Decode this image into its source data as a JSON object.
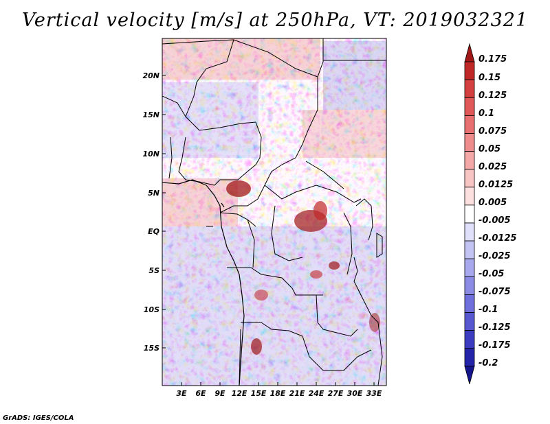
{
  "title": "Vertical velocity [m/s] at 250hPa, VT: 2019032321",
  "map": {
    "region": "Central Africa",
    "variable": "Vertical velocity",
    "units": "m/s",
    "level": "250hPa",
    "valid_time": "2019032321",
    "lat_labels": [
      "20N",
      "15N",
      "10N",
      "5N",
      "EQ",
      "5S",
      "10S",
      "15S"
    ],
    "lon_labels": [
      "3E",
      "6E",
      "9E",
      "12E",
      "15E",
      "18E",
      "21E",
      "24E",
      "27E",
      "30E",
      "33E"
    ]
  },
  "colorbar": {
    "labels": [
      "0.175",
      "0.15",
      "0.125",
      "0.1",
      "0.075",
      "0.05",
      "0.025",
      "0.0125",
      "0.005",
      "-0.005",
      "-0.0125",
      "-0.025",
      "-0.05",
      "-0.075",
      "-0.1",
      "-0.125",
      "-0.175",
      "-0.2"
    ],
    "colors": [
      "#a01818",
      "#c02828",
      "#d44040",
      "#e05858",
      "#e87070",
      "#ee8c8c",
      "#f4a8a8",
      "#f8c4c4",
      "#fce0e0",
      "#ffffff",
      "#e0e0fa",
      "#c4c4f4",
      "#a8a8ee",
      "#8c8ce6",
      "#7070dc",
      "#5858d0",
      "#3c3cc0",
      "#2424a8",
      "#14148c"
    ]
  },
  "credit": "GrADS: IGES/COLA"
}
